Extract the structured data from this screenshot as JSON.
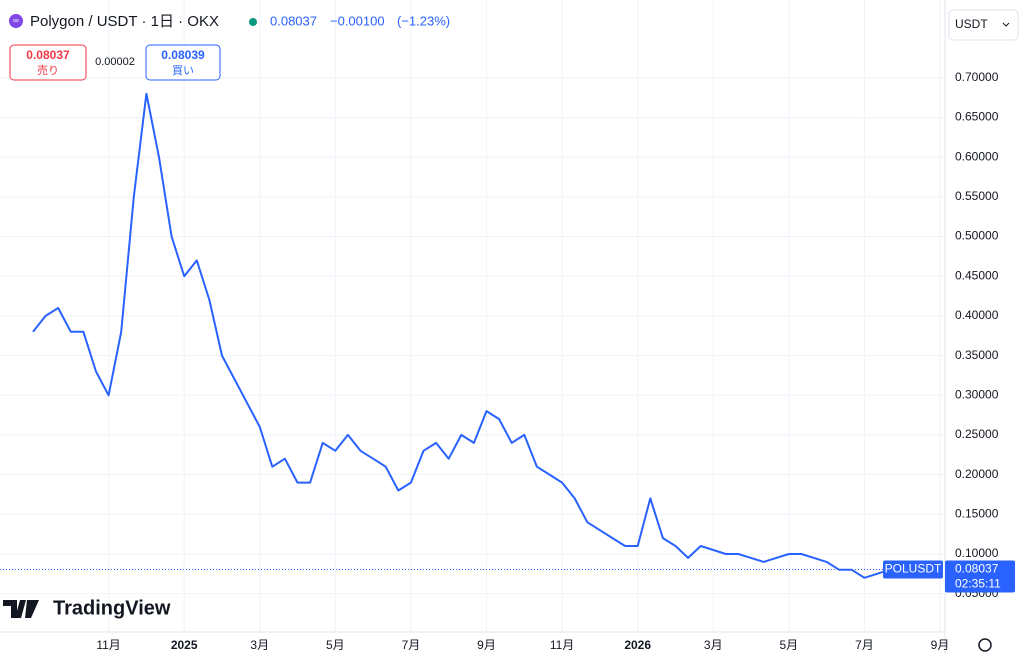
{
  "header": {
    "symbol": "Polygon / USDT · 1日 · OKX",
    "price": "0.08037",
    "change": "−0.00100",
    "change_pct": "(−1.23%)"
  },
  "trade": {
    "sell_price": "0.08037",
    "sell_label": "売り",
    "spread": "0.00002",
    "buy_price": "0.08039",
    "buy_label": "買い"
  },
  "currency": "USDT",
  "price_label": {
    "symbol": "POLUSDT",
    "price": "0.08037",
    "countdown": "02:35:11",
    "value": 0.08037
  },
  "logo": "TradingView",
  "chart_data": {
    "type": "line",
    "color": "#2962ff",
    "categories": [
      null,
      null,
      null,
      null,
      null,
      null,
      "11月",
      null,
      null,
      null,
      null,
      null,
      "2025",
      null,
      null,
      null,
      null,
      null,
      "3月",
      null,
      null,
      null,
      null,
      null,
      "5月",
      null,
      null,
      null,
      null,
      null,
      "7月",
      null,
      null,
      null,
      null,
      null,
      "9月",
      null,
      null,
      null,
      null,
      null,
      "11月",
      null,
      null,
      null,
      null,
      null,
      "2026",
      null,
      null,
      null,
      null,
      null,
      "3月",
      null,
      null,
      null,
      null,
      null,
      "5月",
      null,
      null,
      null,
      null,
      null,
      "7月",
      null,
      null,
      null,
      null,
      null,
      "9月"
    ],
    "values": [
      0.38,
      0.4,
      0.41,
      0.38,
      0.38,
      0.33,
      0.3,
      0.38,
      0.55,
      0.68,
      0.6,
      0.5,
      0.45,
      0.47,
      0.42,
      0.35,
      0.32,
      0.29,
      0.26,
      0.21,
      0.22,
      0.19,
      0.19,
      0.24,
      0.23,
      0.25,
      0.23,
      0.22,
      0.21,
      0.18,
      0.19,
      0.23,
      0.24,
      0.22,
      0.25,
      0.24,
      0.28,
      0.27,
      0.24,
      0.25,
      0.21,
      0.2,
      0.19,
      0.17,
      0.14,
      0.13,
      0.12,
      0.11,
      0.11,
      0.17,
      0.12,
      0.11,
      0.095,
      0.11,
      0.105,
      0.1,
      0.1,
      0.095,
      0.09,
      0.095,
      0.1,
      0.1,
      0.095,
      0.09,
      0.08,
      0.08,
      0.07,
      0.075,
      0.08,
      null,
      null,
      null,
      null
    ],
    "ylim": [
      0.0105,
      0.788
    ],
    "yticks": [
      {
        "value": 0.05,
        "label": "0.05000"
      },
      {
        "value": 0.1,
        "label": "0.10000"
      },
      {
        "value": 0.15,
        "label": "0.15000"
      },
      {
        "value": 0.2,
        "label": "0.20000"
      },
      {
        "value": 0.25,
        "label": "0.25000"
      },
      {
        "value": 0.3,
        "label": "0.30000"
      },
      {
        "value": 0.35,
        "label": "0.35000"
      },
      {
        "value": 0.4,
        "label": "0.40000"
      },
      {
        "value": 0.45,
        "label": "0.45000"
      },
      {
        "value": 0.5,
        "label": "0.50000"
      },
      {
        "value": 0.55,
        "label": "0.55000"
      },
      {
        "value": 0.6,
        "label": "0.60000"
      },
      {
        "value": 0.65,
        "label": "0.65000"
      },
      {
        "value": 0.7,
        "label": "0.70000"
      }
    ],
    "grid": true
  }
}
